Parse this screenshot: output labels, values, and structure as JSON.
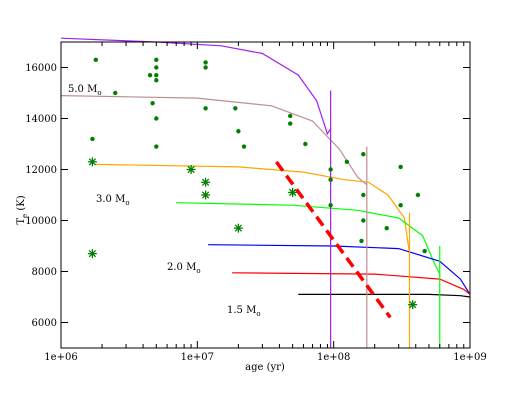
{
  "chart_data": {
    "type": "line",
    "xlabel": "age (yr)",
    "ylabel_main": "T",
    "ylabel_sub": "e",
    "ylabel_unit": " (K)",
    "xscale": "log",
    "xlim": [
      1000000,
      1000000000
    ],
    "ylim": [
      5000,
      17000
    ],
    "x_ticks": [
      {
        "value": 1000000,
        "label": "1e+06"
      },
      {
        "value": 10000000,
        "label": "1e+07"
      },
      {
        "value": 100000000,
        "label": "1e+08"
      },
      {
        "value": 1000000000,
        "label": "1e+09"
      }
    ],
    "y_ticks": [
      6000,
      8000,
      10000,
      12000,
      14000,
      16000
    ],
    "grid": false,
    "tracks": [
      {
        "label_main": "5.0 M",
        "label_sub": "o",
        "color": "#a020f0",
        "points": [
          [
            1000000,
            17150
          ],
          [
            5000000,
            17000
          ],
          [
            15000000,
            16850
          ],
          [
            30000000,
            16550
          ],
          [
            55000000,
            15700
          ],
          [
            75000000,
            14700
          ],
          [
            90000000,
            13400
          ],
          [
            95000000,
            13600
          ]
        ],
        "spike": {
          "x": 95000000,
          "y1": 5000,
          "y2": 15100
        }
      },
      {
        "label_main": "",
        "label_sub": "",
        "color": "#bc8f8f",
        "points": [
          [
            1000000,
            14900
          ],
          [
            10000000,
            14800
          ],
          [
            35000000,
            14500
          ],
          [
            70000000,
            13900
          ],
          [
            110000000,
            12800
          ],
          [
            150000000,
            11700
          ],
          [
            175000000,
            11400
          ]
        ],
        "spike": {
          "x": 175000000,
          "y1": 5000,
          "y2": 12900
        }
      },
      {
        "label_main": "3.0 M",
        "label_sub": "o",
        "color": "#ffa500",
        "points": [
          [
            1800000,
            12200
          ],
          [
            20000000,
            12100
          ],
          [
            60000000,
            11900
          ],
          [
            120000000,
            11600
          ],
          [
            180000000,
            11500
          ],
          [
            250000000,
            11000
          ],
          [
            330000000,
            10100
          ],
          [
            360000000,
            8700
          ]
        ],
        "spike": {
          "x": 360000000,
          "y1": 5000,
          "y2": 10300
        }
      },
      {
        "label_main": "",
        "label_sub": "",
        "color": "#00ff00",
        "points": [
          [
            7000000,
            10700
          ],
          [
            50000000,
            10600
          ],
          [
            150000000,
            10400
          ],
          [
            300000000,
            10100
          ],
          [
            450000000,
            9400
          ],
          [
            550000000,
            8300
          ],
          [
            600000000,
            7900
          ]
        ],
        "spike": {
          "x": 600000000,
          "y1": 5000,
          "y2": 9000
        }
      },
      {
        "label_main": "2.0 M",
        "label_sub": "o",
        "color": "#0000ff",
        "points": [
          [
            12000000,
            9050
          ],
          [
            100000000,
            9000
          ],
          [
            300000000,
            8900
          ],
          [
            600000000,
            8400
          ],
          [
            850000000,
            7700
          ],
          [
            1000000000,
            7100
          ]
        ],
        "spike": null
      },
      {
        "label_main": "",
        "label_sub": "",
        "color": "#ff0000",
        "points": [
          [
            18000000,
            7950
          ],
          [
            200000000,
            7900
          ],
          [
            600000000,
            7700
          ],
          [
            900000000,
            7300
          ],
          [
            1000000000,
            7100
          ]
        ],
        "spike": null
      },
      {
        "label_main": "1.5 M",
        "label_sub": "o",
        "color": "#000000",
        "points": [
          [
            55000000,
            7100
          ],
          [
            500000000,
            7100
          ],
          [
            850000000,
            7050
          ],
          [
            1000000000,
            7000
          ]
        ],
        "spike": null
      }
    ],
    "dashed_line": {
      "color": "#ff0000",
      "points": [
        [
          38000000,
          12300
        ],
        [
          260000000,
          6200
        ]
      ]
    },
    "dots": [
      [
        1800000,
        16300
      ],
      [
        1700000,
        13200
      ],
      [
        2500000,
        15000
      ],
      [
        4500000,
        15700
      ],
      [
        4700000,
        14600
      ],
      [
        5000000,
        16300
      ],
      [
        5000000,
        16000
      ],
      [
        5000000,
        15700
      ],
      [
        5000000,
        15500
      ],
      [
        5000000,
        14000
      ],
      [
        5000000,
        12900
      ],
      [
        11500000,
        16200
      ],
      [
        11500000,
        16000
      ],
      [
        11500000,
        14400
      ],
      [
        19000000,
        14400
      ],
      [
        20000000,
        13500
      ],
      [
        22000000,
        12900
      ],
      [
        48000000,
        14100
      ],
      [
        48000000,
        13800
      ],
      [
        62000000,
        13000
      ],
      [
        95000000,
        12000
      ],
      [
        95000000,
        11600
      ],
      [
        95000000,
        10600
      ],
      [
        125000000,
        12300
      ],
      [
        165000000,
        12600
      ],
      [
        165000000,
        11000
      ],
      [
        165000000,
        10000
      ],
      [
        160000000,
        9200
      ],
      [
        245000000,
        9700
      ],
      [
        310000000,
        12100
      ],
      [
        310000000,
        10600
      ],
      [
        415000000,
        11000
      ],
      [
        465000000,
        8800
      ]
    ],
    "stars": [
      [
        1700000,
        12300
      ],
      [
        1700000,
        8700
      ],
      [
        9000000,
        12000
      ],
      [
        11500000,
        11500
      ],
      [
        11500000,
        11000
      ],
      [
        20000000,
        9700
      ],
      [
        50000000,
        11100
      ],
      [
        380000000,
        6700
      ]
    ],
    "marker_color": "#008000"
  }
}
